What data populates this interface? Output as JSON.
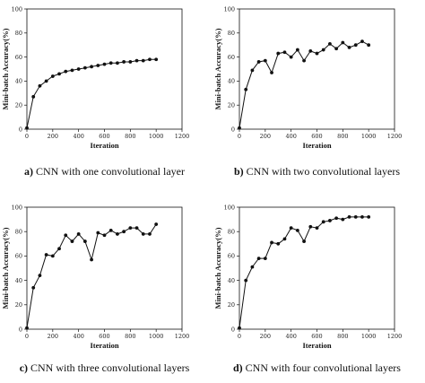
{
  "chart_data": [
    {
      "type": "line",
      "caption_letter": "a)",
      "caption_text": " CNN with one convolutional layer",
      "xlabel": "Iteration",
      "ylabel": "Mini-batch Accuracy(%)",
      "xlim": [
        0,
        1200
      ],
      "ylim": [
        0,
        100
      ],
      "xticks": [
        0,
        200,
        400,
        600,
        800,
        1000,
        1200
      ],
      "yticks": [
        0,
        20,
        40,
        60,
        80,
        100
      ],
      "x": [
        0,
        50,
        100,
        150,
        200,
        250,
        300,
        350,
        400,
        450,
        500,
        550,
        600,
        650,
        700,
        750,
        800,
        850,
        900,
        950,
        1000
      ],
      "y": [
        1,
        27,
        36,
        40,
        44,
        46,
        48,
        49,
        50,
        51,
        52,
        53,
        54,
        55,
        55,
        56,
        56,
        57,
        57,
        58,
        58
      ]
    },
    {
      "type": "line",
      "caption_letter": "b)",
      "caption_text": " CNN with two convolutional layers",
      "xlabel": "Iteration",
      "ylabel": "Mini-batch Accuracy(%)",
      "xlim": [
        0,
        1200
      ],
      "ylim": [
        0,
        100
      ],
      "xticks": [
        0,
        200,
        400,
        600,
        800,
        1000,
        1200
      ],
      "yticks": [
        0,
        20,
        40,
        60,
        80,
        100
      ],
      "x": [
        0,
        50,
        100,
        150,
        200,
        250,
        300,
        350,
        400,
        450,
        500,
        550,
        600,
        650,
        700,
        750,
        800,
        850,
        900,
        950,
        1000
      ],
      "y": [
        1,
        33,
        49,
        56,
        57,
        47,
        63,
        64,
        60,
        66,
        57,
        65,
        63,
        66,
        71,
        67,
        72,
        68,
        70,
        73,
        70
      ]
    },
    {
      "type": "line",
      "caption_letter": "c)",
      "caption_text": " CNN with three convolutional layers",
      "xlabel": "Iteration",
      "ylabel": "Mini-batch Accuracy(%)",
      "xlim": [
        0,
        1200
      ],
      "ylim": [
        0,
        100
      ],
      "xticks": [
        0,
        200,
        400,
        600,
        800,
        1000,
        1200
      ],
      "yticks": [
        0,
        20,
        40,
        60,
        80,
        100
      ],
      "x": [
        0,
        50,
        100,
        150,
        200,
        250,
        300,
        350,
        400,
        450,
        500,
        550,
        600,
        650,
        700,
        750,
        800,
        850,
        900,
        950,
        1000
      ],
      "y": [
        1,
        34,
        44,
        61,
        60,
        66,
        77,
        72,
        78,
        72,
        57,
        79,
        77,
        81,
        78,
        80,
        83,
        83,
        78,
        78,
        86
      ]
    },
    {
      "type": "line",
      "caption_letter": "d)",
      "caption_text": " CNN with four convolutional layers",
      "xlabel": "Iteration",
      "ylabel": "Mini-batch Accuracy(%)",
      "xlim": [
        0,
        1200
      ],
      "ylim": [
        0,
        100
      ],
      "xticks": [
        0,
        200,
        400,
        600,
        800,
        1000,
        1200
      ],
      "yticks": [
        0,
        20,
        40,
        60,
        80,
        100
      ],
      "x": [
        0,
        50,
        100,
        150,
        200,
        250,
        300,
        350,
        400,
        450,
        500,
        550,
        600,
        650,
        700,
        750,
        800,
        850,
        900,
        950,
        1000
      ],
      "y": [
        1,
        40,
        51,
        58,
        58,
        71,
        70,
        74,
        83,
        81,
        72,
        84,
        83,
        88,
        89,
        91,
        90,
        92,
        92,
        92,
        92
      ]
    }
  ]
}
